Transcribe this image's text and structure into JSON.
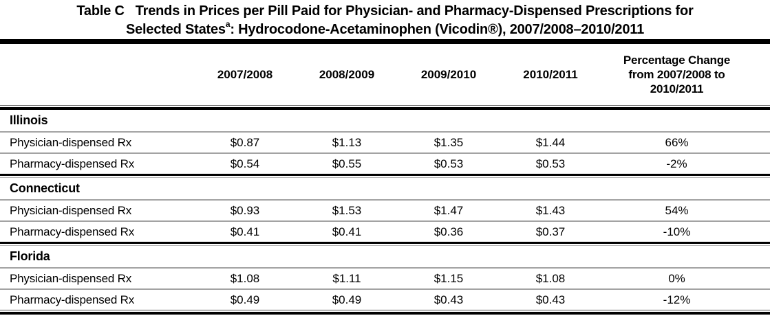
{
  "title": {
    "label": "Table C",
    "line1": "Trends in Prices per Pill Paid for Physician- and Pharmacy-Dispensed Prescriptions for",
    "line2_pre": "Selected States",
    "line2_sup": "a",
    "line2_post": ": Hydrocodone-Acetaminophen (Vicodin®), 2007/2008–2010/2011"
  },
  "table": {
    "header": {
      "years": [
        "2007/2008",
        "2008/2009",
        "2009/2010",
        "2010/2011"
      ],
      "pct_line1": "Percentage Change",
      "pct_line2": "from 2007/2008 to",
      "pct_line3": "2010/2011"
    },
    "sections": [
      {
        "state": "Illinois",
        "rows": [
          {
            "label": "Physician-dispensed Rx",
            "values": [
              "$0.87",
              "$1.13",
              "$1.35",
              "$1.44",
              "66%"
            ]
          },
          {
            "label": "Pharmacy-dispensed Rx",
            "values": [
              "$0.54",
              "$0.55",
              "$0.53",
              "$0.53",
              "-2%"
            ]
          }
        ]
      },
      {
        "state": "Connecticut",
        "rows": [
          {
            "label": "Physician-dispensed Rx",
            "values": [
              "$0.93",
              "$1.53",
              "$1.47",
              "$1.43",
              "54%"
            ]
          },
          {
            "label": "Pharmacy-dispensed Rx",
            "values": [
              "$0.41",
              "$0.41",
              "$0.36",
              "$0.37",
              "-10%"
            ]
          }
        ]
      },
      {
        "state": "Florida",
        "rows": [
          {
            "label": "Physician-dispensed Rx",
            "values": [
              "$1.08",
              "$1.11",
              "$1.15",
              "$1.08",
              "0%"
            ]
          },
          {
            "label": "Pharmacy-dispensed Rx",
            "values": [
              "$0.49",
              "$0.49",
              "$0.43",
              "$0.43",
              "-12%"
            ]
          }
        ]
      }
    ]
  }
}
